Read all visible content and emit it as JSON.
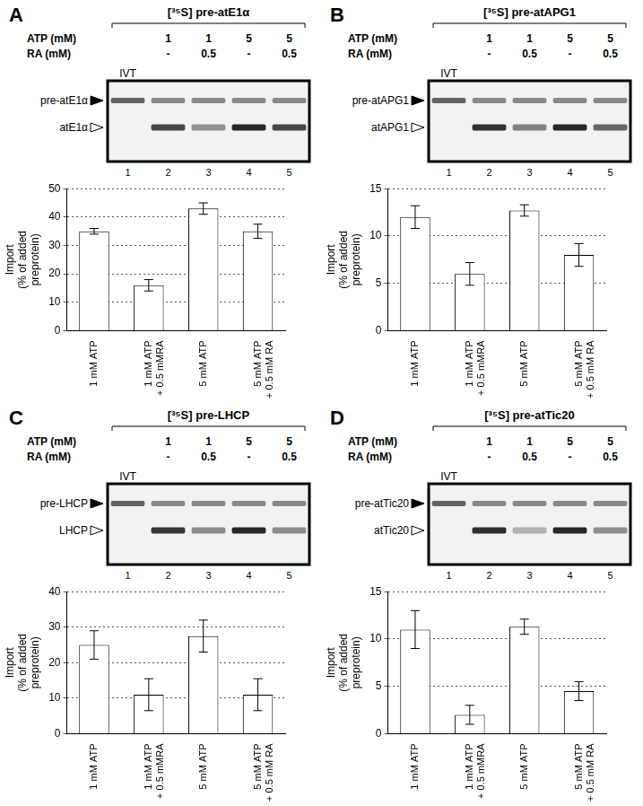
{
  "chart_data": [
    {
      "type": "bar",
      "categories": [
        "1 mM ATP",
        "1 mM ATP\n+ 0.5 mMRA",
        "5 mM ATP",
        "5 mM ATP\n+ 0.5 mM RA"
      ],
      "values": [
        35,
        16,
        43,
        35
      ],
      "errors": [
        1,
        2,
        2,
        2.5
      ],
      "color": "#ffffff",
      "ylim": [
        0,
        50
      ],
      "yticks": [
        0,
        10,
        20,
        30,
        40,
        50
      ],
      "grid": true,
      "y_label": "Import\n(% of added\npreprotein)"
    },
    {
      "type": "bar",
      "categories": [
        "1 mM ATP",
        "1 mM ATP\n+ 0.5 mMRA",
        "5 mM ATP",
        "5 mM ATP\n+ 0.5 mM RA"
      ],
      "values": [
        12,
        6,
        12.7,
        8
      ],
      "errors": [
        1.2,
        1.2,
        0.6,
        1.2
      ],
      "color": "#ffffff",
      "ylim": [
        0,
        15
      ],
      "yticks": [
        0,
        5,
        10,
        15
      ],
      "grid": true,
      "y_label": "Import\n(% of added\npreprotein)"
    },
    {
      "type": "bar",
      "categories": [
        "1 mM ATP",
        "1 mM ATP\n+ 0.5 mMRA",
        "5 mM ATP",
        "5 mM ATP\n+ 0.5 mM RA"
      ],
      "values": [
        25,
        11,
        27.5,
        11
      ],
      "errors": [
        4,
        4.5,
        4.5,
        4.5
      ],
      "color": "#ffffff",
      "ylim": [
        0,
        40
      ],
      "yticks": [
        0,
        10,
        20,
        30,
        40
      ],
      "grid": true,
      "y_label": "Import\n(% of added\npreprotein)"
    },
    {
      "type": "bar",
      "categories": [
        "1 mM ATP",
        "1 mM ATP\n+ 0.5 mMRA",
        "5 mM ATP",
        "5 mM ATP\n+ 0.5 mM RA"
      ],
      "values": [
        11,
        2,
        11.3,
        4.5
      ],
      "errors": [
        2,
        1,
        0.8,
        1
      ],
      "color": "#ffffff",
      "ylim": [
        0,
        15
      ],
      "yticks": [
        0,
        5,
        10,
        15
      ],
      "grid": true,
      "y_label": "Import\n(% of added\npreprotein)"
    }
  ],
  "gels": [
    {
      "panel": "A",
      "header": "[³⁵S] pre-atE1α",
      "rows": [
        {
          "label": "ATP (mM)",
          "values": [
            "1",
            "1",
            "5",
            "5"
          ]
        },
        {
          "label": "RA (mM)",
          "values": [
            "-",
            "0.5",
            "-",
            "0.5"
          ]
        }
      ],
      "lane_label": "IVT",
      "lanes": [
        "1",
        "2",
        "3",
        "4",
        "5"
      ],
      "bands": [
        {
          "label": "pre-atE1α",
          "marker": "filled"
        },
        {
          "label": "atE1α",
          "marker": "open"
        }
      ]
    },
    {
      "panel": "B",
      "header": "[³⁵S] pre-atAPG1",
      "rows": [
        {
          "label": "ATP (mM)",
          "values": [
            "1",
            "1",
            "5",
            "5"
          ]
        },
        {
          "label": "RA (mM)",
          "values": [
            "-",
            "0.5",
            "-",
            "0.5"
          ]
        }
      ],
      "lane_label": "IVT",
      "lanes": [
        "1",
        "2",
        "3",
        "4",
        "5"
      ],
      "bands": [
        {
          "label": "pre-atAPG1",
          "marker": "filled"
        },
        {
          "label": "atAPG1",
          "marker": "open"
        }
      ]
    },
    {
      "panel": "C",
      "header": "[³⁵S] pre-LHCP",
      "rows": [
        {
          "label": "ATP (mM)",
          "values": [
            "1",
            "1",
            "5",
            "5"
          ]
        },
        {
          "label": "RA (mM)",
          "values": [
            "-",
            "0.5",
            "-",
            "0.5"
          ]
        }
      ],
      "lane_label": "IVT",
      "lanes": [
        "1",
        "2",
        "3",
        "4",
        "5"
      ],
      "bands": [
        {
          "label": "pre-LHCP",
          "marker": "filled"
        },
        {
          "label": "LHCP",
          "marker": "open"
        }
      ]
    },
    {
      "panel": "D",
      "header": "[³⁵S] pre-atTic20",
      "rows": [
        {
          "label": "ATP (mM)",
          "values": [
            "1",
            "1",
            "5",
            "5"
          ]
        },
        {
          "label": "RA (mM)",
          "values": [
            "-",
            "0.5",
            "-",
            "0.5"
          ]
        }
      ],
      "lane_label": "IVT",
      "lanes": [
        "1",
        "2",
        "3",
        "4",
        "5"
      ],
      "bands": [
        {
          "label": "pre-atTic20",
          "marker": "filled"
        },
        {
          "label": "atTic20",
          "marker": "open"
        }
      ]
    }
  ]
}
